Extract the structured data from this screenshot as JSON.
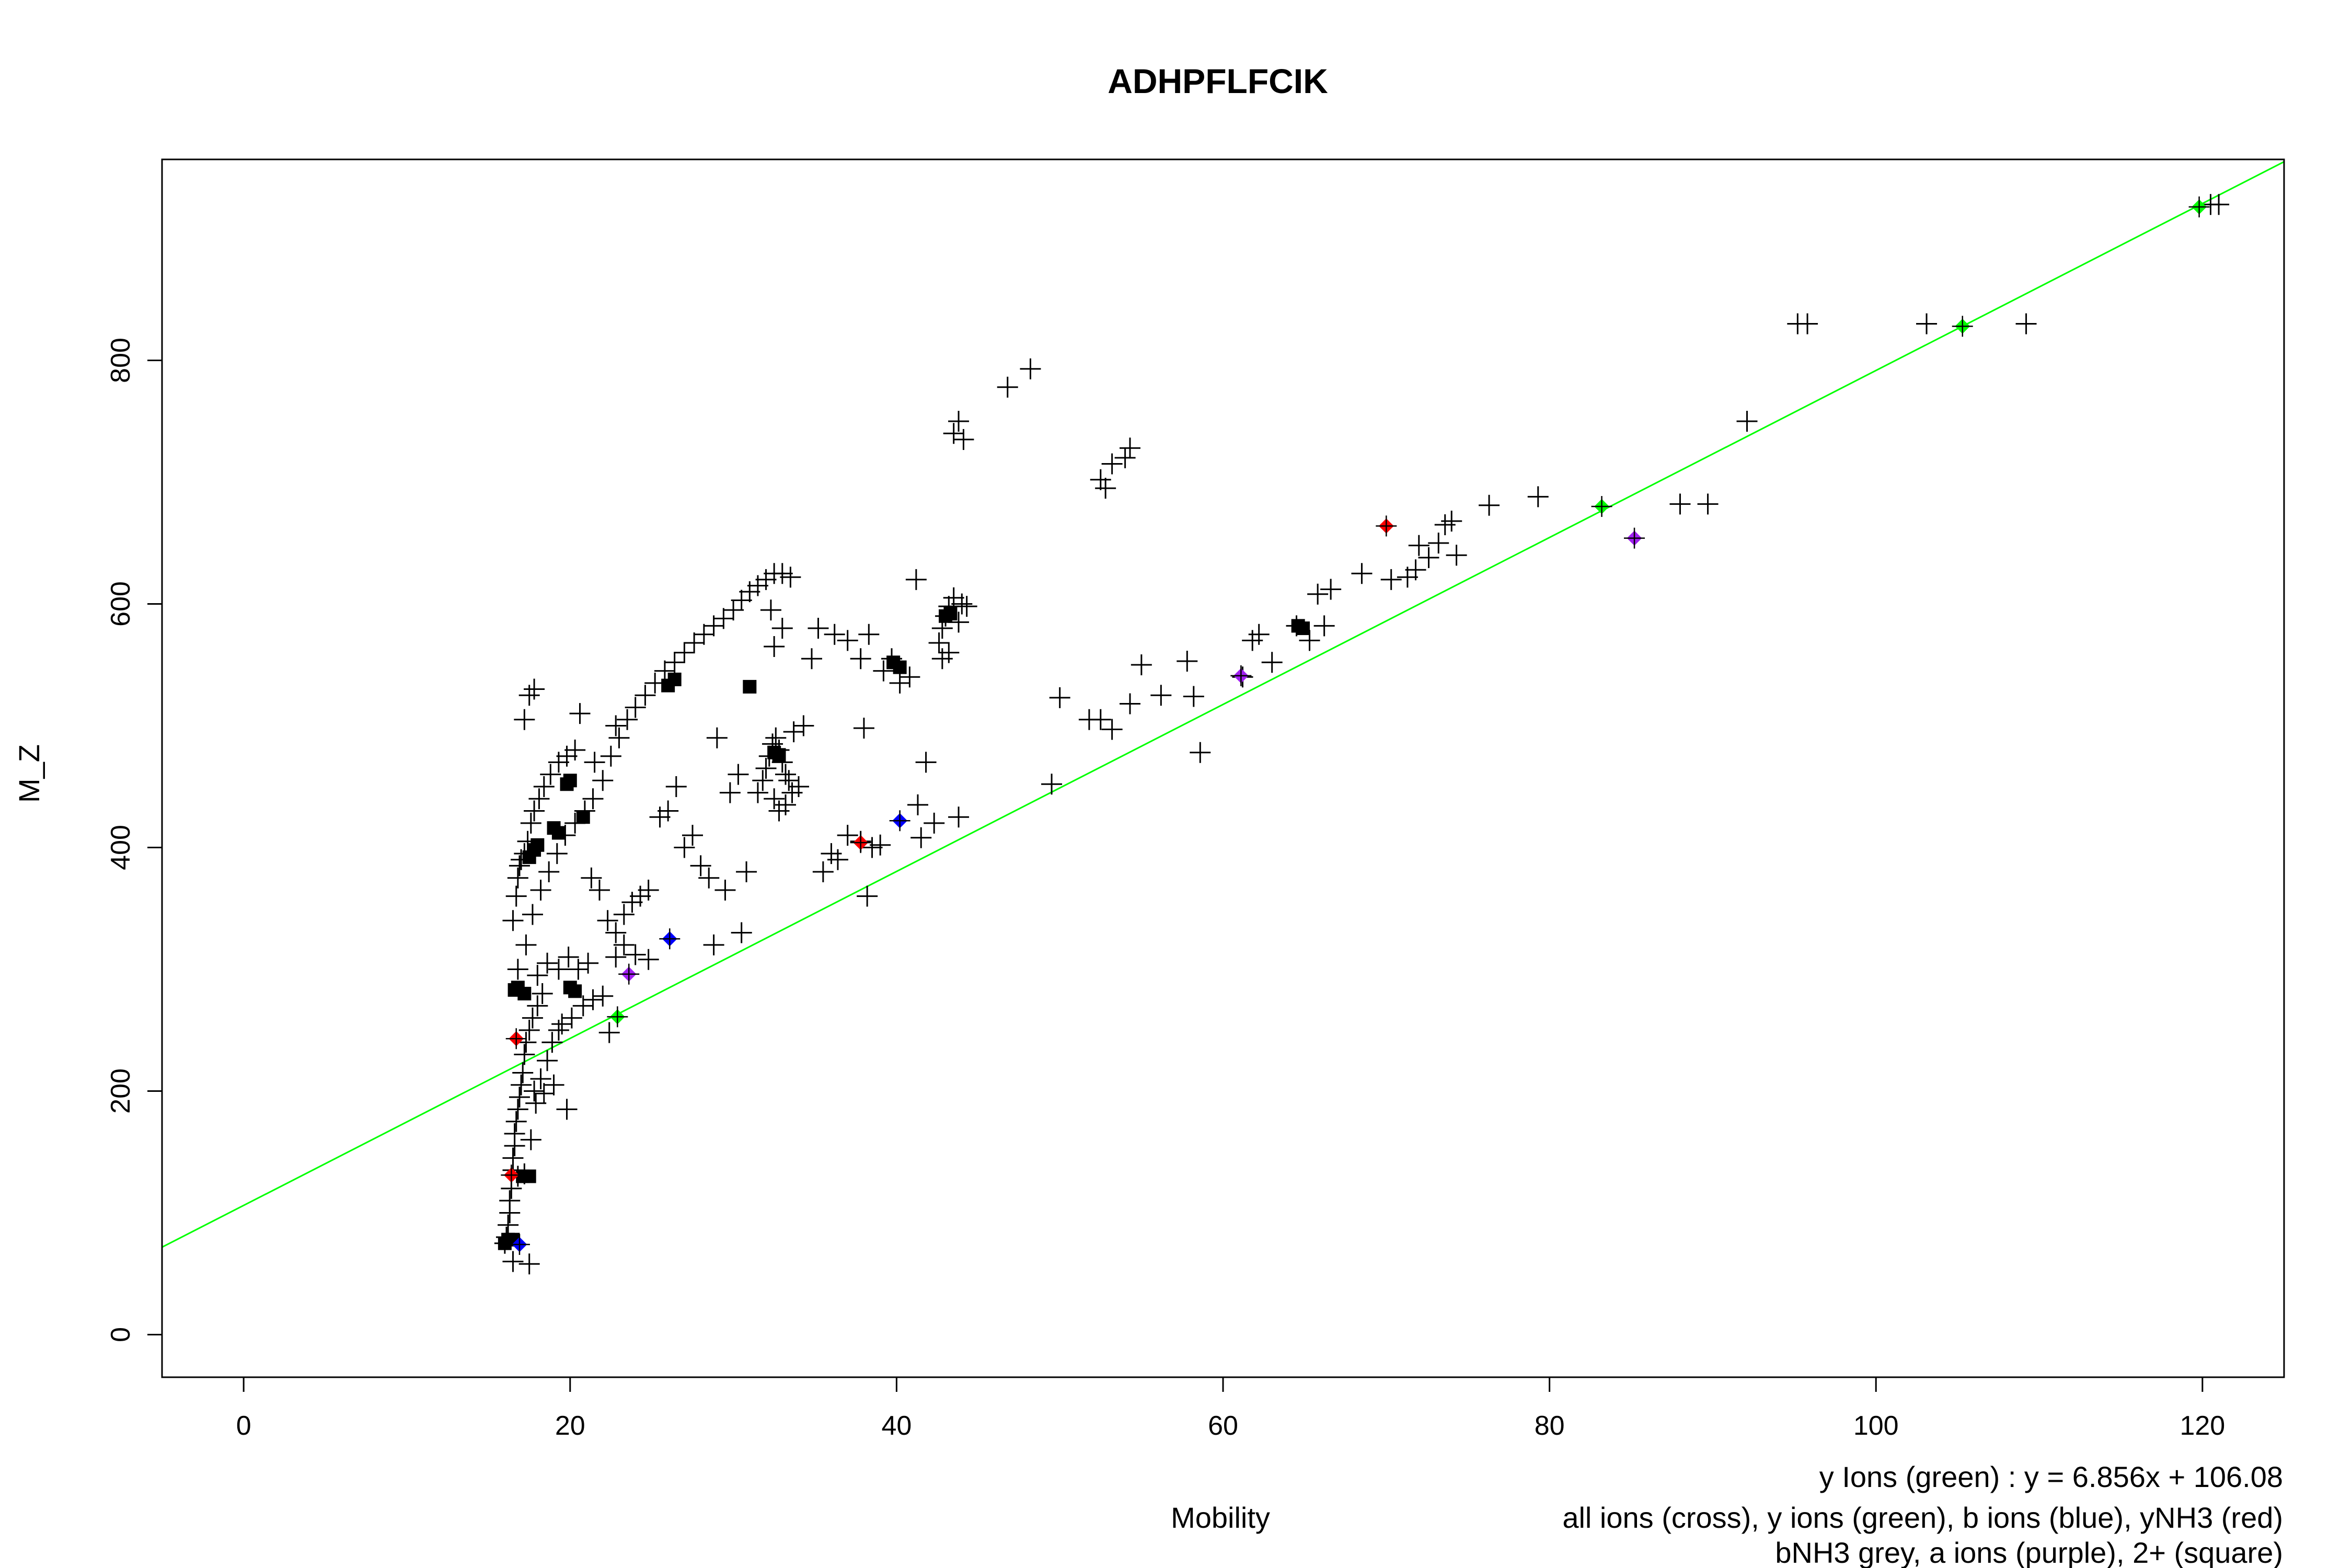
{
  "chart_data": {
    "type": "scatter",
    "title": "ADHPFLFCIK",
    "xlabel": "Mobility",
    "ylabel": "M_Z",
    "xlim": [
      -5,
      125
    ],
    "ylim": [
      -35,
      965
    ],
    "x_ticks": [
      0,
      20,
      40,
      60,
      80,
      100,
      120
    ],
    "y_ticks": [
      0,
      200,
      400,
      600,
      800
    ],
    "grid": false,
    "legend": "bottom-right text notes",
    "notes": [
      "y Ions (green) : y = 6.856x + 106.08",
      "all ions (cross), y ions (green), b ions (blue), yNH3 (red)",
      "bNH3 grey, a ions (purple), 2+ (square)"
    ],
    "fit_line": {
      "slope": 6.856,
      "intercept": 106.08,
      "color": "#00ff00"
    },
    "colors": {
      "y_ions": "#00ff00",
      "b_ions": "#0000ff",
      "yNH3": "#ff0000",
      "a_ions": "#a020f0",
      "all_ions": "#000000"
    },
    "series": [
      {
        "marker": "cross",
        "color": "#000000",
        "points": [
          [
            16.0,
            75
          ],
          [
            16.1,
            80
          ],
          [
            16.2,
            90
          ],
          [
            16.3,
            100
          ],
          [
            16.3,
            110
          ],
          [
            16.4,
            120
          ],
          [
            16.5,
            135
          ],
          [
            16.5,
            145
          ],
          [
            16.6,
            155
          ],
          [
            16.6,
            165
          ],
          [
            16.7,
            175
          ],
          [
            16.8,
            185
          ],
          [
            16.9,
            195
          ],
          [
            17.0,
            205
          ],
          [
            17.1,
            215
          ],
          [
            17.2,
            230
          ],
          [
            17.3,
            240
          ],
          [
            17.5,
            250
          ],
          [
            17.7,
            260
          ],
          [
            18.0,
            270
          ],
          [
            18.3,
            280
          ],
          [
            16.5,
            60
          ],
          [
            17.5,
            58
          ],
          [
            16.8,
            130
          ],
          [
            17.2,
            132
          ],
          [
            17.6,
            160
          ],
          [
            17.9,
            190
          ],
          [
            18.2,
            210
          ],
          [
            18.6,
            225
          ],
          [
            18.9,
            240
          ],
          [
            19.3,
            250
          ],
          [
            17.8,
            200
          ],
          [
            18.4,
            198
          ],
          [
            19.0,
            205
          ],
          [
            16.5,
            340
          ],
          [
            16.7,
            360
          ],
          [
            16.8,
            375
          ],
          [
            16.9,
            385
          ],
          [
            17.0,
            390
          ],
          [
            17.2,
            395
          ],
          [
            17.4,
            405
          ],
          [
            17.6,
            420
          ],
          [
            17.8,
            430
          ],
          [
            18.1,
            440
          ],
          [
            18.4,
            450
          ],
          [
            18.8,
            460
          ],
          [
            19.3,
            470
          ],
          [
            19.8,
            475
          ],
          [
            20.3,
            480
          ],
          [
            17.5,
            525
          ],
          [
            17.8,
            530
          ],
          [
            17.2,
            505
          ],
          [
            16.8,
            300
          ],
          [
            17.3,
            320
          ],
          [
            17.7,
            345
          ],
          [
            18.2,
            365
          ],
          [
            18.7,
            380
          ],
          [
            19.2,
            395
          ],
          [
            19.7,
            410
          ],
          [
            20.3,
            420
          ],
          [
            20.9,
            430
          ],
          [
            18.0,
            295
          ],
          [
            18.6,
            305
          ],
          [
            19.3,
            300
          ],
          [
            19.9,
            310
          ],
          [
            20.5,
            300
          ],
          [
            21.1,
            305
          ],
          [
            19.5,
            255
          ],
          [
            20.1,
            260
          ],
          [
            20.8,
            270
          ],
          [
            21.4,
            275
          ],
          [
            22.0,
            278
          ],
          [
            22.4,
            248
          ],
          [
            19.8,
            185
          ],
          [
            21.4,
            440
          ],
          [
            22.0,
            455
          ],
          [
            22.5,
            475
          ],
          [
            23.0,
            490
          ],
          [
            23.5,
            505
          ],
          [
            24.0,
            515
          ],
          [
            24.6,
            525
          ],
          [
            25.2,
            535
          ],
          [
            25.8,
            545
          ],
          [
            26.4,
            552
          ],
          [
            27.0,
            560
          ],
          [
            27.6,
            568
          ],
          [
            28.2,
            575
          ],
          [
            28.8,
            582
          ],
          [
            29.4,
            588
          ],
          [
            30.0,
            595
          ],
          [
            30.5,
            603
          ],
          [
            31.0,
            610
          ],
          [
            31.5,
            615
          ],
          [
            32.0,
            620
          ],
          [
            32.5,
            625
          ],
          [
            33.0,
            625
          ],
          [
            33.5,
            622
          ],
          [
            20.6,
            510
          ],
          [
            21.5,
            470
          ],
          [
            22.8,
            500
          ],
          [
            21.3,
            375
          ],
          [
            21.8,
            365
          ],
          [
            22.3,
            340
          ],
          [
            22.8,
            330
          ],
          [
            23.3,
            345
          ],
          [
            23.8,
            355
          ],
          [
            24.3,
            360
          ],
          [
            24.8,
            365
          ],
          [
            22.8,
            310
          ],
          [
            23.3,
            320
          ],
          [
            24.0,
            312
          ],
          [
            24.8,
            308
          ],
          [
            25.5,
            425
          ],
          [
            26.0,
            430
          ],
          [
            26.5,
            450
          ],
          [
            27.0,
            400
          ],
          [
            27.5,
            410
          ],
          [
            28.0,
            385
          ],
          [
            28.5,
            375
          ],
          [
            29.0,
            490
          ],
          [
            29.8,
            445
          ],
          [
            30.3,
            460
          ],
          [
            29.5,
            365
          ],
          [
            30.5,
            330
          ],
          [
            30.8,
            380
          ],
          [
            28.8,
            320
          ],
          [
            31.5,
            445
          ],
          [
            31.8,
            455
          ],
          [
            32.0,
            465
          ],
          [
            32.2,
            475
          ],
          [
            32.4,
            485
          ],
          [
            32.6,
            490
          ],
          [
            32.8,
            480
          ],
          [
            33.0,
            470
          ],
          [
            33.2,
            460
          ],
          [
            33.4,
            455
          ],
          [
            32.5,
            440
          ],
          [
            32.8,
            430
          ],
          [
            33.2,
            435
          ],
          [
            33.6,
            445
          ],
          [
            34.0,
            450
          ],
          [
            34.3,
            500
          ],
          [
            33.7,
            495
          ],
          [
            32.3,
            595
          ],
          [
            33.0,
            580
          ],
          [
            32.5,
            565
          ],
          [
            34.8,
            555
          ],
          [
            35.2,
            580
          ],
          [
            36.2,
            575
          ],
          [
            37.0,
            570
          ],
          [
            37.8,
            555
          ],
          [
            38.3,
            575
          ],
          [
            35.5,
            380
          ],
          [
            36.0,
            395
          ],
          [
            36.4,
            390
          ],
          [
            37.0,
            410
          ],
          [
            37.8,
            405
          ],
          [
            38.5,
            400
          ],
          [
            39.0,
            402
          ],
          [
            38.2,
            360
          ],
          [
            38.0,
            498
          ],
          [
            39.2,
            545
          ],
          [
            39.7,
            555
          ],
          [
            40.2,
            535
          ],
          [
            40.8,
            540
          ],
          [
            41.3,
            435
          ],
          [
            41.8,
            470
          ],
          [
            41.5,
            408
          ],
          [
            42.3,
            420
          ],
          [
            43.8,
            425
          ],
          [
            41.2,
            620
          ],
          [
            42.6,
            568
          ],
          [
            42.8,
            580
          ],
          [
            43.0,
            590
          ],
          [
            43.2,
            598
          ],
          [
            43.5,
            605
          ],
          [
            43.8,
            585
          ],
          [
            44.0,
            600
          ],
          [
            44.3,
            598
          ],
          [
            42.8,
            555
          ],
          [
            43.2,
            560
          ],
          [
            43.5,
            740
          ],
          [
            43.8,
            750
          ],
          [
            44.1,
            735
          ],
          [
            46.8,
            778
          ],
          [
            48.2,
            793
          ],
          [
            52.5,
            702
          ],
          [
            52.8,
            695
          ],
          [
            53.2,
            715
          ],
          [
            54.0,
            720
          ],
          [
            54.3,
            728
          ],
          [
            49.5,
            452
          ],
          [
            50.0,
            523
          ],
          [
            51.8,
            505
          ],
          [
            52.5,
            505
          ],
          [
            53.2,
            497
          ],
          [
            54.3,
            518
          ],
          [
            55.0,
            550
          ],
          [
            56.2,
            525
          ],
          [
            57.8,
            553
          ],
          [
            58.2,
            524
          ],
          [
            58.6,
            478
          ],
          [
            61.2,
            540
          ],
          [
            61.8,
            570
          ],
          [
            62.2,
            575
          ],
          [
            63.0,
            552
          ],
          [
            64.5,
            582
          ],
          [
            65.3,
            570
          ],
          [
            65.8,
            608
          ],
          [
            66.2,
            582
          ],
          [
            66.6,
            612
          ],
          [
            68.5,
            625
          ],
          [
            70.3,
            620
          ],
          [
            71.3,
            622
          ],
          [
            71.8,
            628
          ],
          [
            72.0,
            648
          ],
          [
            72.6,
            638
          ],
          [
            73.2,
            650
          ],
          [
            73.6,
            665
          ],
          [
            74.0,
            668
          ],
          [
            74.3,
            640
          ],
          [
            76.3,
            681
          ],
          [
            79.3,
            688
          ],
          [
            88.0,
            682
          ],
          [
            89.7,
            682
          ],
          [
            92.1,
            750
          ],
          [
            95.2,
            830
          ],
          [
            95.8,
            830
          ],
          [
            103.1,
            830
          ],
          [
            109.2,
            830
          ],
          [
            120.5,
            928
          ],
          [
            121.0,
            928
          ]
        ]
      },
      {
        "marker": "square",
        "color": "#000000",
        "points": [
          [
            16.0,
            75
          ],
          [
            16.2,
            78
          ],
          [
            16.5,
            78
          ],
          [
            16.8,
            285
          ],
          [
            16.6,
            283
          ],
          [
            17.2,
            280
          ],
          [
            17.1,
            130
          ],
          [
            17.5,
            130
          ],
          [
            17.5,
            392
          ],
          [
            17.8,
            398
          ],
          [
            18.0,
            402
          ],
          [
            19.0,
            416
          ],
          [
            19.3,
            412
          ],
          [
            20.0,
            455
          ],
          [
            19.8,
            452
          ],
          [
            20.8,
            425
          ],
          [
            20.0,
            285
          ],
          [
            20.3,
            282
          ],
          [
            26.0,
            533
          ],
          [
            26.4,
            538
          ],
          [
            31.0,
            532
          ],
          [
            32.5,
            478
          ],
          [
            32.8,
            476
          ],
          [
            39.8,
            552
          ],
          [
            40.2,
            548
          ],
          [
            43.0,
            590
          ],
          [
            43.3,
            592
          ],
          [
            64.6,
            582
          ],
          [
            64.9,
            580
          ]
        ]
      },
      {
        "name": "y ions (green)",
        "marker": "filled-diamond",
        "color": "#00ff00",
        "points": [
          [
            22.9,
            261
          ],
          [
            83.2,
            680
          ],
          [
            105.3,
            828
          ],
          [
            119.8,
            926
          ]
        ]
      },
      {
        "name": "b ions (blue)",
        "marker": "filled-diamond",
        "color": "#0000ff",
        "points": [
          [
            26.1,
            325
          ],
          [
            40.2,
            422
          ],
          [
            16.9,
            74
          ]
        ]
      },
      {
        "name": "yNH3 (red)",
        "marker": "filled-diamond",
        "color": "#ff0000",
        "points": [
          [
            16.4,
            131
          ],
          [
            16.7,
            243
          ],
          [
            37.8,
            404
          ],
          [
            70.0,
            664
          ]
        ]
      },
      {
        "name": "a ions (purple)",
        "marker": "filled-diamond",
        "color": "#a020f0",
        "points": [
          [
            23.6,
            296
          ],
          [
            61.1,
            541
          ],
          [
            85.2,
            654
          ]
        ]
      }
    ]
  }
}
